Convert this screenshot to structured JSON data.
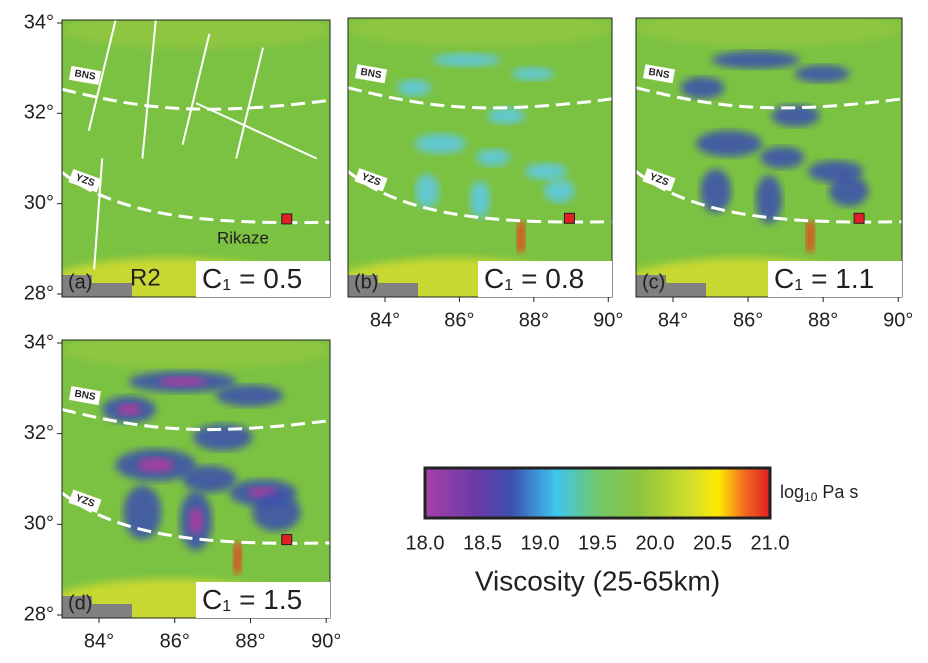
{
  "panels": [
    {
      "label": "(a)",
      "symbol": "C",
      "subscript": "1",
      "equals": "= 0.5",
      "faults": [
        "BNS",
        "YZS"
      ],
      "model": "R2",
      "city": "Rikaze"
    },
    {
      "label": "(b)",
      "symbol": "C",
      "subscript": "1",
      "equals": "= 0.8",
      "faults": [
        "BNS",
        "YZS"
      ]
    },
    {
      "label": "(c)",
      "symbol": "C",
      "subscript": "1",
      "equals": "= 1.1",
      "faults": [
        "BNS",
        "YZS"
      ]
    },
    {
      "label": "(d)",
      "symbol": "C",
      "subscript": "1",
      "equals": "= 1.5",
      "faults": [
        "BNS",
        "YZS"
      ]
    }
  ],
  "y_axis_labels": [
    "34°",
    "32°",
    "30°",
    "28°"
  ],
  "x_axis_labels": [
    "84°",
    "86°",
    "88°",
    "90°"
  ],
  "colorbar": {
    "ticks": [
      "18.0",
      "18.5",
      "19.0",
      "19.5",
      "20.0",
      "20.5",
      "21.0"
    ],
    "unit_base": "log",
    "unit_sub": "10",
    "unit_rest": " Pa s",
    "title": "Viscosity (25-65km)"
  }
}
